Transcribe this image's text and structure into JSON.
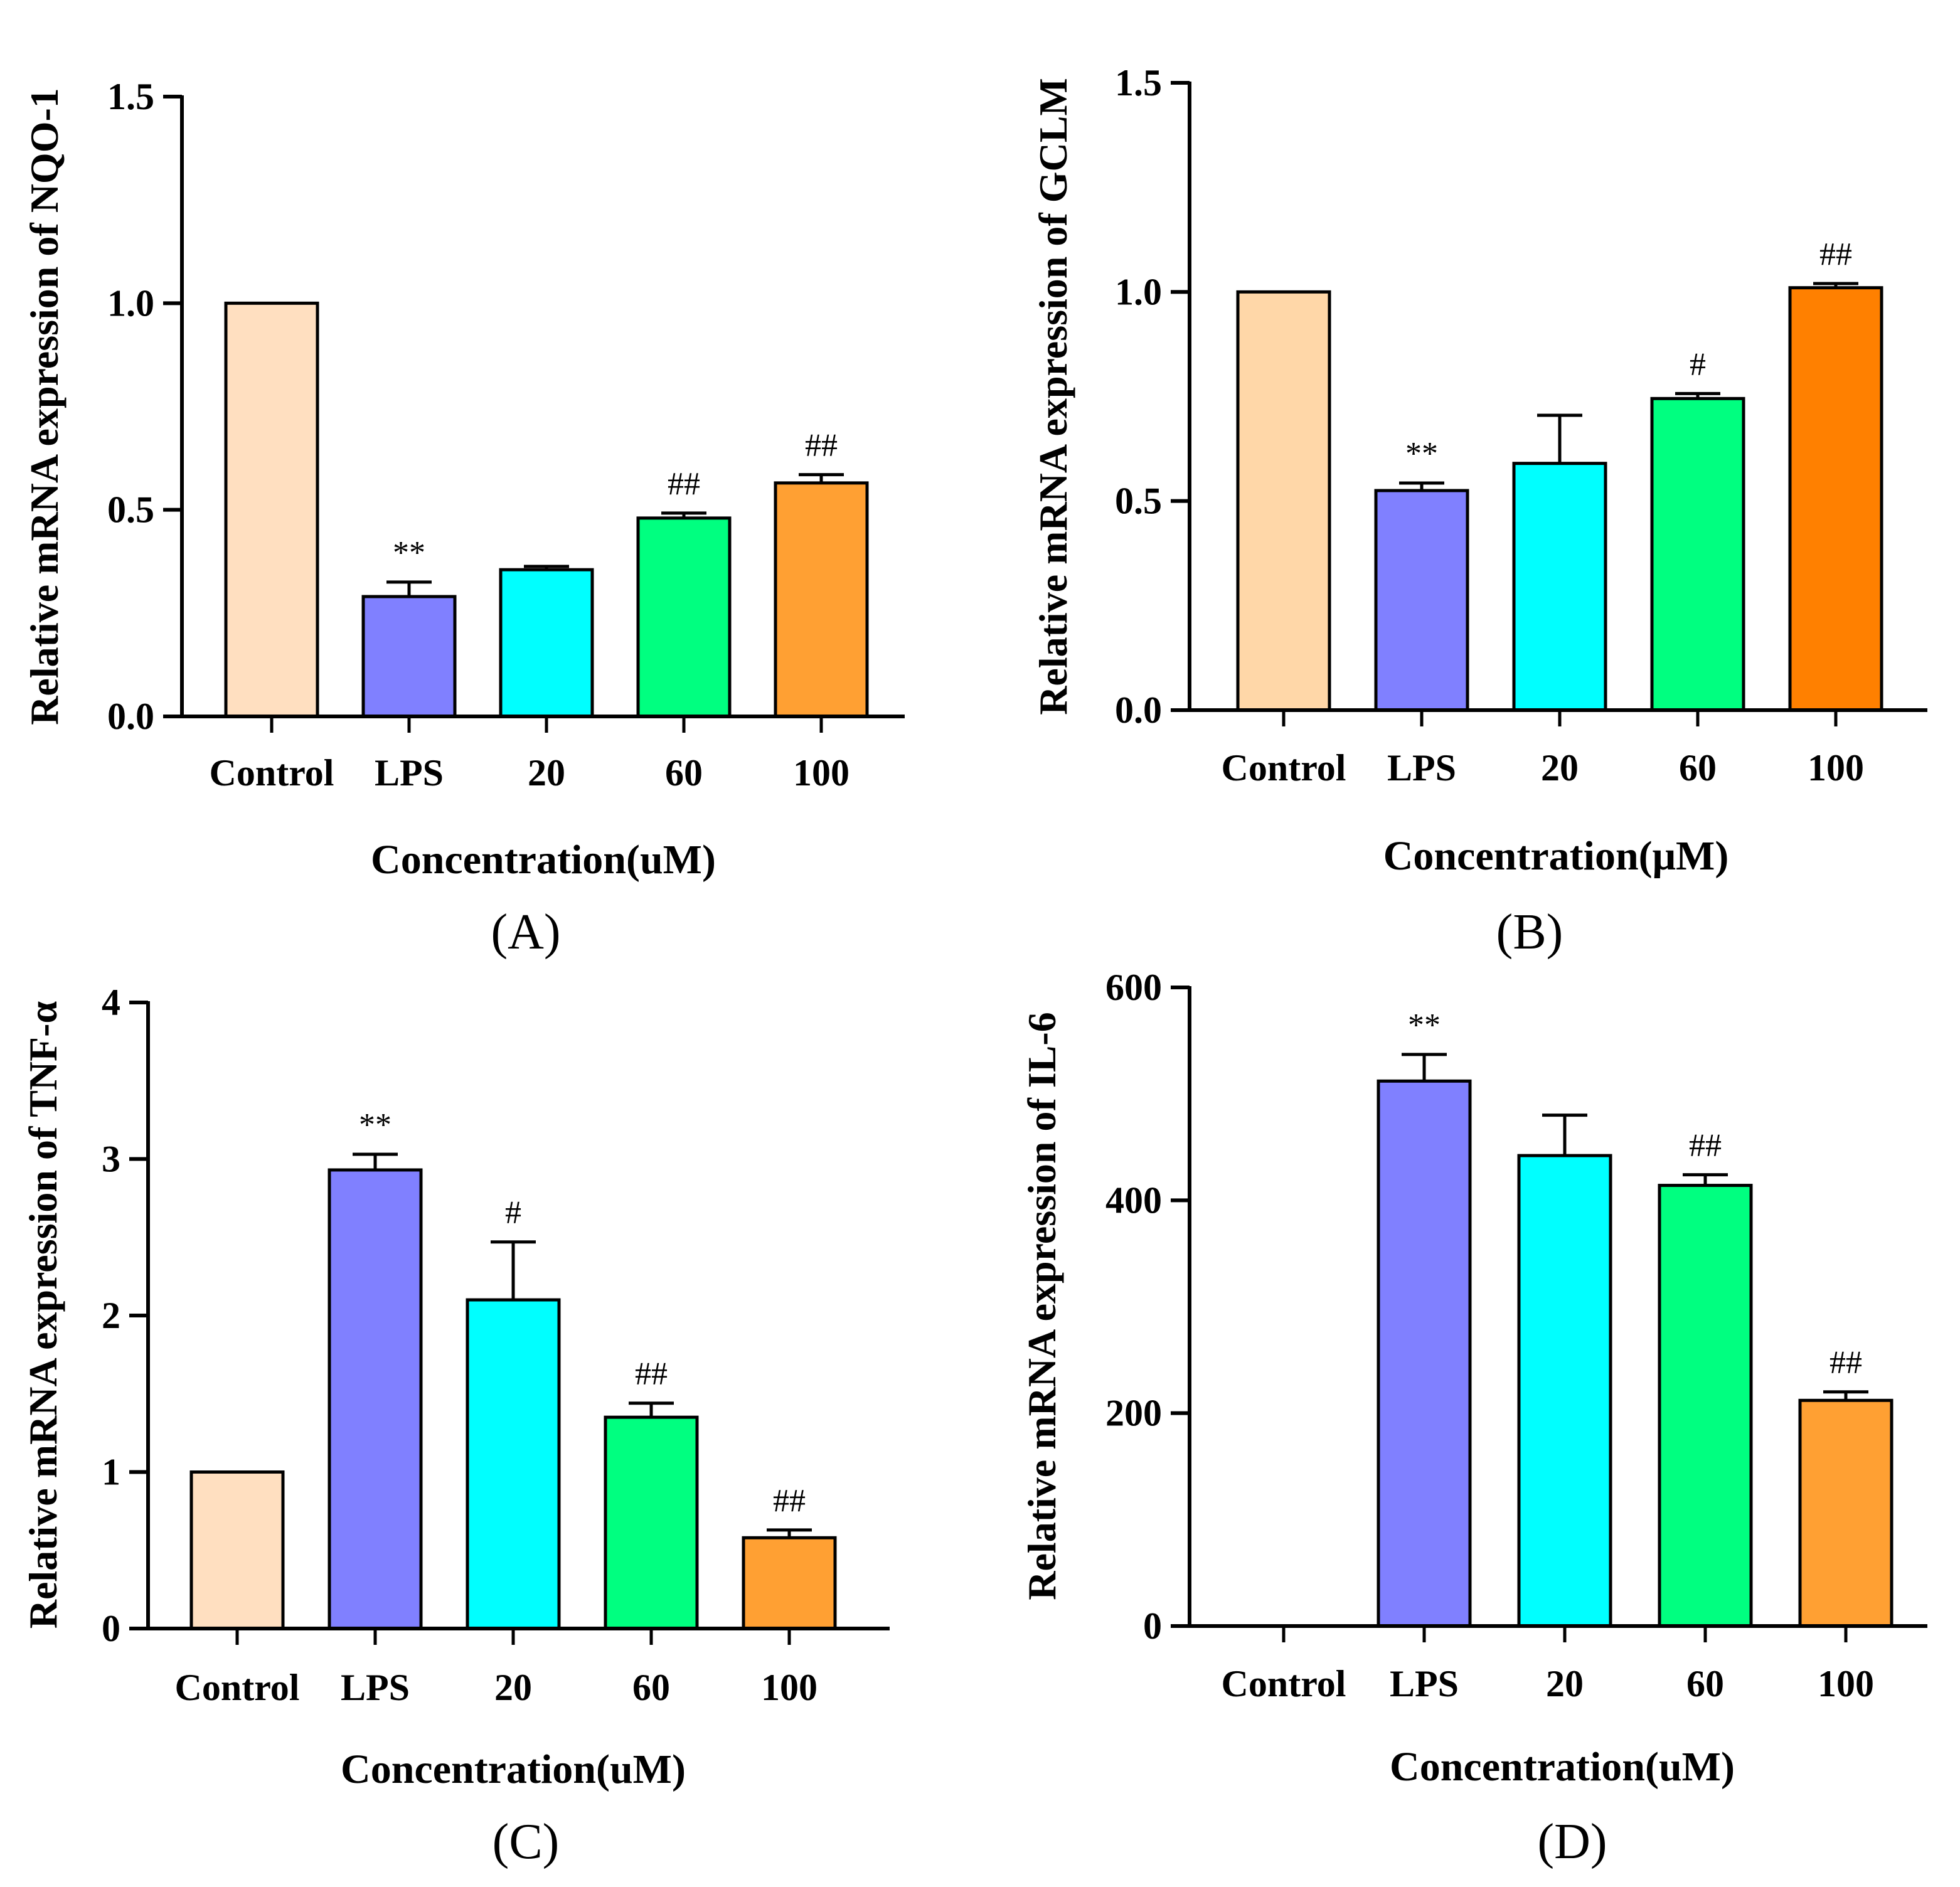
{
  "chart_data": [
    {
      "type": "bar",
      "panel": "(A)",
      "ylabel": "Relative mRNA expression of NQO-1",
      "xlabel": "Concentration(uM)",
      "categories": [
        "Control",
        "LPS",
        "20",
        "60",
        "100"
      ],
      "values": [
        1.0,
        0.29,
        0.355,
        0.48,
        0.565
      ],
      "errors": [
        0.0,
        0.035,
        0.008,
        0.012,
        0.02
      ],
      "significance": [
        "",
        "**",
        "",
        "##",
        "##"
      ],
      "colors": [
        "#FFDFC0",
        "#8080FF",
        "#00FFFF",
        "#00FF80",
        "#FFA033"
      ],
      "ylim": [
        0,
        1.5
      ],
      "yticks": [
        0.0,
        0.5,
        1.0,
        1.5
      ],
      "ytick_labels": [
        "0.0",
        "0.5",
        "1.0",
        "1.5"
      ]
    },
    {
      "type": "bar",
      "panel": "(B)",
      "ylabel": "Relative mRNA expression of GCLM",
      "xlabel": "Concentration(μM)",
      "categories": [
        "Control",
        "LPS",
        "20",
        "60",
        "100"
      ],
      "values": [
        1.0,
        0.525,
        0.59,
        0.745,
        1.01
      ],
      "errors": [
        0.0,
        0.018,
        0.115,
        0.012,
        0.01
      ],
      "significance": [
        "",
        "**",
        "",
        "#",
        "##"
      ],
      "colors": [
        "#FFD7A8",
        "#8080FF",
        "#00FFFF",
        "#00FF80",
        "#FF8000"
      ],
      "ylim": [
        0,
        1.5
      ],
      "yticks": [
        0.0,
        0.5,
        1.0,
        1.5
      ],
      "ytick_labels": [
        "0.0",
        "0.5",
        "1.0",
        "1.5"
      ]
    },
    {
      "type": "bar",
      "panel": "(C)",
      "ylabel": "Relative mRNA expression of TNF-α",
      "xlabel": "Concentration(uM)",
      "categories": [
        "Control",
        "LPS",
        "20",
        "60",
        "100"
      ],
      "values": [
        1.0,
        2.93,
        2.1,
        1.35,
        0.58
      ],
      "errors": [
        0.0,
        0.1,
        0.37,
        0.09,
        0.05
      ],
      "significance": [
        "",
        "**",
        "#",
        "##",
        "##"
      ],
      "colors": [
        "#FFDFC0",
        "#8080FF",
        "#00FFFF",
        "#00FF80",
        "#FFA033"
      ],
      "ylim": [
        0,
        4
      ],
      "yticks": [
        0,
        1,
        2,
        3,
        4
      ],
      "ytick_labels": [
        "0",
        "1",
        "2",
        "3",
        "4"
      ]
    },
    {
      "type": "bar",
      "panel": "(D)",
      "ylabel": "Relative mRNA expression of IL-6",
      "xlabel": "Concentration(uM)",
      "categories": [
        "Control",
        "LPS",
        "20",
        "60",
        "100"
      ],
      "values": [
        0,
        512,
        442,
        414,
        212
      ],
      "errors": [
        0,
        25,
        38,
        10,
        8
      ],
      "significance": [
        "",
        "**",
        "",
        "##",
        "##"
      ],
      "colors": [
        "#FFDFC0",
        "#8080FF",
        "#00FFFF",
        "#00FF80",
        "#FFA033"
      ],
      "ylim": [
        0,
        600
      ],
      "yticks": [
        0,
        200,
        400,
        600
      ],
      "ytick_labels": [
        "0",
        "200",
        "400",
        "600"
      ]
    }
  ]
}
